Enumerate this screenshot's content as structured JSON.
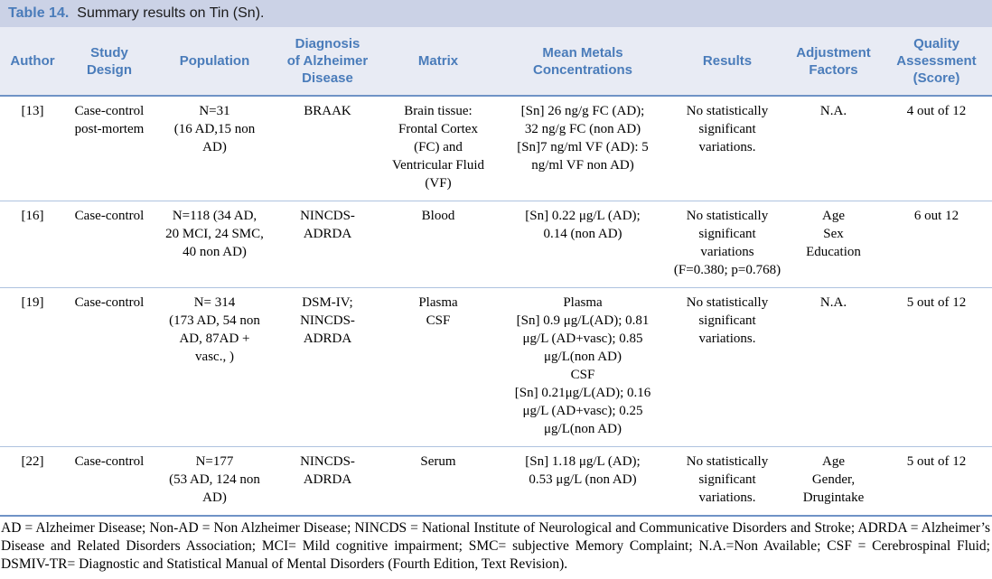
{
  "title": {
    "label": "Table 14.",
    "text": "Summary results on Tin (Sn)."
  },
  "colors": {
    "title_bar_bg": "#cbd2e6",
    "header_bg": "#e8ebf4",
    "accent_blue": "#4a7cba",
    "strong_rule": "#6f93c6",
    "light_rule": "#aec3df"
  },
  "table": {
    "columns": [
      {
        "key": "author",
        "label": "Author"
      },
      {
        "key": "study_design",
        "label": "Study\nDesign"
      },
      {
        "key": "population",
        "label": "Population"
      },
      {
        "key": "diagnosis",
        "label": "Diagnosis\nof Alzheimer\nDisease"
      },
      {
        "key": "matrix",
        "label": "Matrix"
      },
      {
        "key": "concentrations",
        "label": "Mean Metals\nConcentrations"
      },
      {
        "key": "results",
        "label": "Results"
      },
      {
        "key": "adjustment",
        "label": "Adjustment\nFactors"
      },
      {
        "key": "quality",
        "label": "Quality\nAssessment\n(Score)"
      }
    ],
    "rows": [
      {
        "author": "[13]",
        "study_design": "Case-control\npost-mortem",
        "population": "N=31\n(16 AD,15 non\nAD)",
        "diagnosis": "BRAAK",
        "matrix": "Brain tissue:\nFrontal Cortex\n(FC) and\nVentricular Fluid\n(VF)",
        "concentrations": "[Sn] 26 ng/g FC (AD);\n32 ng/g FC (non AD)\n[Sn]7 ng/ml VF (AD): 5\nng/ml VF non AD)",
        "results": "No statistically\nsignificant variations.",
        "adjustment": "N.A.",
        "quality": "4 out of 12"
      },
      {
        "author": "[16]",
        "study_design": "Case-control",
        "population": "N=118 (34 AD,\n20 MCI, 24 SMC,\n40 non AD)",
        "diagnosis": "NINCDS-\nADRDA",
        "matrix": "Blood",
        "concentrations": "[Sn] 0.22 μg/L (AD);\n0.14 (non AD)",
        "results": "No statistically\nsignificant variations\n(F=0.380; p=0.768)",
        "adjustment": "Age\nSex\nEducation",
        "quality": "6 out 12"
      },
      {
        "author": "[19]",
        "study_design": "Case-control",
        "population": "N= 314\n(173 AD, 54 non\nAD, 87AD +\nvasc., )",
        "diagnosis": "DSM-IV;\nNINCDS-\nADRDA",
        "matrix": "Plasma\nCSF",
        "concentrations": "Plasma\n[Sn] 0.9 μg/L(AD); 0.81\nμg/L (AD+vasc); 0.85\nμg/L(non AD)\nCSF\n[Sn] 0.21μg/L(AD); 0.16\nμg/L (AD+vasc); 0.25\nμg/L(non AD)",
        "results": "No statistically\nsignificant variations.",
        "adjustment": "N.A.",
        "quality": "5 out of 12"
      },
      {
        "author": "[22]",
        "study_design": "Case-control",
        "population": "N=177\n(53 AD, 124 non\nAD)",
        "diagnosis": "NINCDS-\nADRDA",
        "matrix": "Serum",
        "concentrations": "[Sn] 1.18 μg/L (AD);\n0.53 μg/L (non AD)",
        "results": "No statistically\nsignificant variations.",
        "adjustment": "Age\nGender,\nDrugintake",
        "quality": "5 out of 12"
      }
    ]
  },
  "footnote": "AD = Alzheimer Disease; Non-AD = Non Alzheimer Disease; NINCDS = National Institute of Neurological and Communicative Disorders and Stroke; ADRDA = Alzheimer’s Disease and Related Disorders Association; MCI= Mild cognitive impairment; SMC= subjective Memory Complaint; N.A.=Non Available; CSF = Cerebrospinal Fluid; DSMIV-TR= Diagnostic and Statistical Manual of Mental Disorders (Fourth Edition, Text Revision)."
}
